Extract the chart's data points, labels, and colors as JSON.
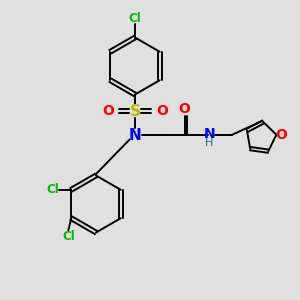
{
  "bg_color": "#e0e0e0",
  "bond_color": "#000000",
  "cl_color": "#00bb00",
  "n_color": "#0000ff",
  "o_color": "#ff0000",
  "s_color": "#bbbb00",
  "h_color": "#008080",
  "figsize": [
    3.0,
    3.0
  ],
  "dpi": 100,
  "xlim": [
    0,
    10
  ],
  "ylim": [
    0,
    10
  ]
}
